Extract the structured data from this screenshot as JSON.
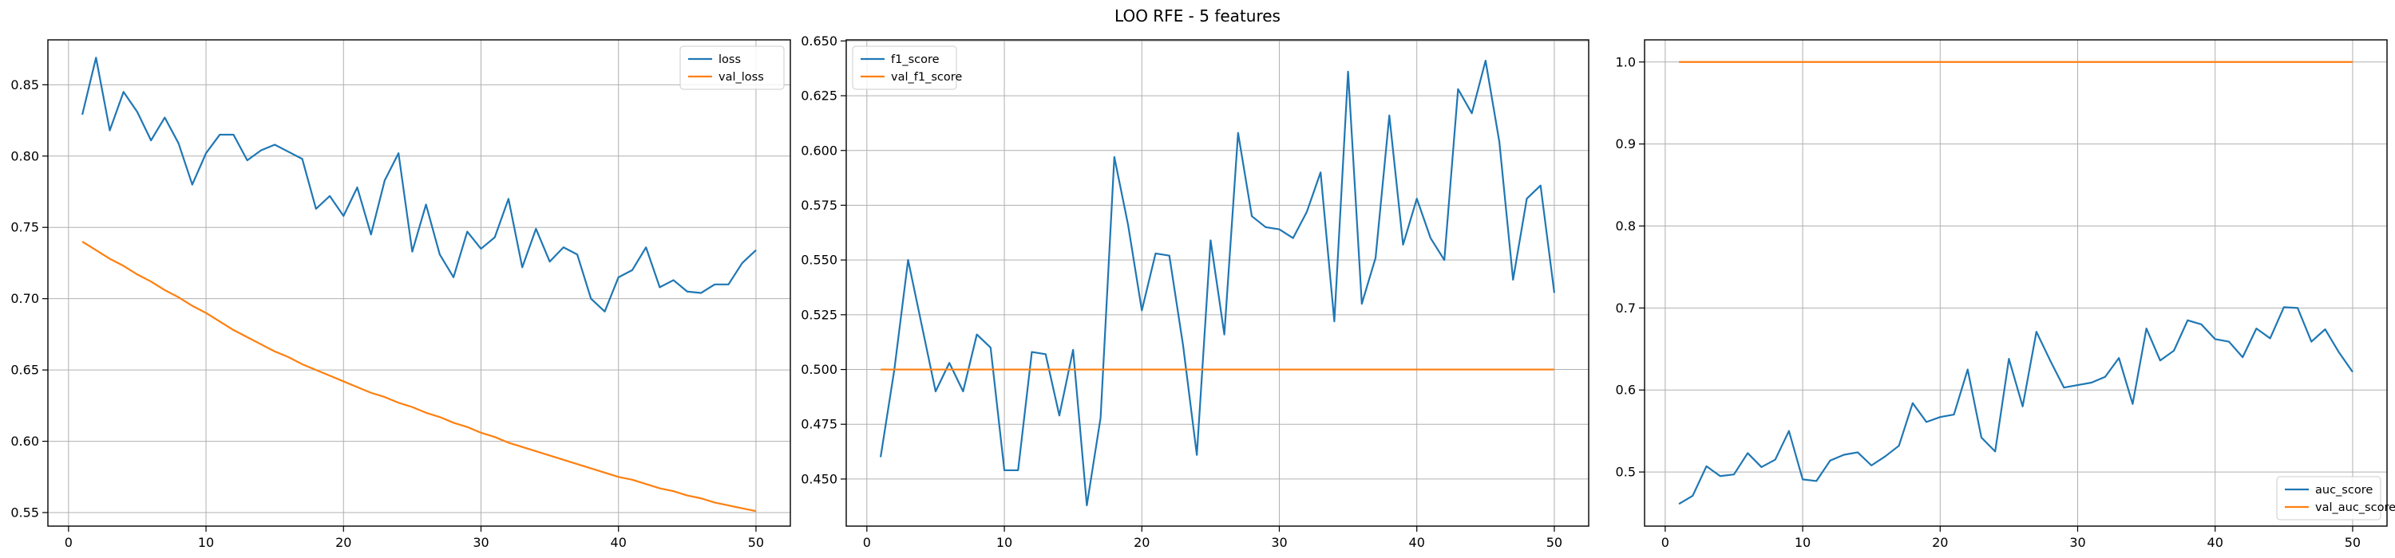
{
  "figure": {
    "title": "LOO RFE - 5 features"
  },
  "chart_data": [
    {
      "type": "line",
      "xlim": [
        -1.5,
        52.5
      ],
      "ylim": [
        0.5405,
        0.8815
      ],
      "xticks": [
        0,
        10,
        20,
        30,
        40,
        50
      ],
      "xtick_labels": [
        "0",
        "10",
        "20",
        "30",
        "40",
        "50"
      ],
      "yticks": [
        0.55,
        0.6,
        0.65,
        0.7,
        0.75,
        0.8,
        0.85
      ],
      "ytick_labels": [
        "0.55",
        "0.60",
        "0.65",
        "0.70",
        "0.75",
        "0.80",
        "0.85"
      ],
      "grid": true,
      "legend_position": "upper right",
      "x": [
        1,
        2,
        3,
        4,
        5,
        6,
        7,
        8,
        9,
        10,
        11,
        12,
        13,
        14,
        15,
        16,
        17,
        18,
        19,
        20,
        21,
        22,
        23,
        24,
        25,
        26,
        27,
        28,
        29,
        30,
        31,
        32,
        33,
        34,
        35,
        36,
        37,
        38,
        39,
        40,
        41,
        42,
        43,
        44,
        45,
        46,
        47,
        48,
        49,
        50
      ],
      "series": [
        {
          "name": "loss",
          "color": "#1f77b4",
          "values": [
            0.829,
            0.869,
            0.818,
            0.845,
            0.831,
            0.811,
            0.827,
            0.809,
            0.78,
            0.802,
            0.815,
            0.815,
            0.797,
            0.804,
            0.808,
            0.803,
            0.798,
            0.763,
            0.772,
            0.758,
            0.778,
            0.745,
            0.783,
            0.802,
            0.733,
            0.766,
            0.731,
            0.715,
            0.747,
            0.735,
            0.743,
            0.77,
            0.722,
            0.749,
            0.726,
            0.736,
            0.731,
            0.7,
            0.691,
            0.715,
            0.72,
            0.736,
            0.708,
            0.713,
            0.705,
            0.704,
            0.71,
            0.71,
            0.725,
            0.734
          ]
        },
        {
          "name": "val_loss",
          "color": "#ff7f0e",
          "values": [
            0.74,
            0.734,
            0.728,
            0.723,
            0.717,
            0.712,
            0.706,
            0.701,
            0.695,
            0.69,
            0.684,
            0.678,
            0.673,
            0.668,
            0.663,
            0.659,
            0.654,
            0.65,
            0.646,
            0.642,
            0.638,
            0.634,
            0.631,
            0.627,
            0.624,
            0.62,
            0.617,
            0.613,
            0.61,
            0.606,
            0.603,
            0.599,
            0.596,
            0.593,
            0.59,
            0.587,
            0.584,
            0.581,
            0.578,
            0.575,
            0.573,
            0.57,
            0.567,
            0.565,
            0.562,
            0.56,
            0.557,
            0.555,
            0.553,
            0.551
          ]
        }
      ]
    },
    {
      "type": "line",
      "xlim": [
        -1.5,
        52.5
      ],
      "ylim": [
        0.4285,
        0.6505
      ],
      "xticks": [
        0,
        10,
        20,
        30,
        40,
        50
      ],
      "xtick_labels": [
        "0",
        "10",
        "20",
        "30",
        "40",
        "50"
      ],
      "yticks": [
        0.45,
        0.475,
        0.5,
        0.525,
        0.55,
        0.575,
        0.6,
        0.625,
        0.65
      ],
      "ytick_labels": [
        "0.450",
        "0.475",
        "0.500",
        "0.525",
        "0.550",
        "0.575",
        "0.600",
        "0.625",
        "0.650"
      ],
      "grid": true,
      "legend_position": "upper left",
      "x": [
        1,
        2,
        3,
        4,
        5,
        6,
        7,
        8,
        9,
        10,
        11,
        12,
        13,
        14,
        15,
        16,
        17,
        18,
        19,
        20,
        21,
        22,
        23,
        24,
        25,
        26,
        27,
        28,
        29,
        30,
        31,
        32,
        33,
        34,
        35,
        36,
        37,
        38,
        39,
        40,
        41,
        42,
        43,
        44,
        45,
        46,
        47,
        48,
        49,
        50
      ],
      "series": [
        {
          "name": "f1_score",
          "color": "#1f77b4",
          "values": [
            0.46,
            0.5,
            0.55,
            0.52,
            0.49,
            0.503,
            0.49,
            0.516,
            0.51,
            0.454,
            0.454,
            0.508,
            0.507,
            0.479,
            0.509,
            0.438,
            0.478,
            0.597,
            0.566,
            0.527,
            0.553,
            0.552,
            0.511,
            0.461,
            0.559,
            0.516,
            0.608,
            0.57,
            0.565,
            0.564,
            0.56,
            0.572,
            0.59,
            0.522,
            0.636,
            0.53,
            0.551,
            0.616,
            0.557,
            0.578,
            0.56,
            0.55,
            0.628,
            0.617,
            0.641,
            0.604,
            0.541,
            0.578,
            0.584,
            0.535
          ]
        },
        {
          "name": "val_f1_score",
          "color": "#ff7f0e",
          "values": [
            0.5,
            0.5,
            0.5,
            0.5,
            0.5,
            0.5,
            0.5,
            0.5,
            0.5,
            0.5,
            0.5,
            0.5,
            0.5,
            0.5,
            0.5,
            0.5,
            0.5,
            0.5,
            0.5,
            0.5,
            0.5,
            0.5,
            0.5,
            0.5,
            0.5,
            0.5,
            0.5,
            0.5,
            0.5,
            0.5,
            0.5,
            0.5,
            0.5,
            0.5,
            0.5,
            0.5,
            0.5,
            0.5,
            0.5,
            0.5,
            0.5,
            0.5,
            0.5,
            0.5,
            0.5,
            0.5,
            0.5,
            0.5,
            0.5,
            0.5
          ]
        }
      ]
    },
    {
      "type": "line",
      "xlim": [
        -1.5,
        52.5
      ],
      "ylim": [
        0.434,
        1.027
      ],
      "xticks": [
        0,
        10,
        20,
        30,
        40,
        50
      ],
      "xtick_labels": [
        "0",
        "10",
        "20",
        "30",
        "40",
        "50"
      ],
      "yticks": [
        0.5,
        0.6,
        0.7,
        0.8,
        0.9,
        1.0
      ],
      "ytick_labels": [
        "0.5",
        "0.6",
        "0.7",
        "0.8",
        "0.9",
        "1.0"
      ],
      "grid": true,
      "legend_position": "lower right",
      "x": [
        1,
        2,
        3,
        4,
        5,
        6,
        7,
        8,
        9,
        10,
        11,
        12,
        13,
        14,
        15,
        16,
        17,
        18,
        19,
        20,
        21,
        22,
        23,
        24,
        25,
        26,
        27,
        28,
        29,
        30,
        31,
        32,
        33,
        34,
        35,
        36,
        37,
        38,
        39,
        40,
        41,
        42,
        43,
        44,
        45,
        46,
        47,
        48,
        49,
        50
      ],
      "series": [
        {
          "name": "auc_score",
          "color": "#1f77b4",
          "values": [
            0.461,
            0.471,
            0.507,
            0.495,
            0.497,
            0.523,
            0.506,
            0.515,
            0.55,
            0.491,
            0.489,
            0.514,
            0.521,
            0.524,
            0.508,
            0.519,
            0.532,
            0.584,
            0.561,
            0.567,
            0.57,
            0.625,
            0.542,
            0.525,
            0.638,
            0.58,
            0.671,
            0.636,
            0.603,
            0.606,
            0.609,
            0.616,
            0.639,
            0.583,
            0.675,
            0.636,
            0.648,
            0.685,
            0.68,
            0.662,
            0.659,
            0.64,
            0.675,
            0.663,
            0.701,
            0.7,
            0.659,
            0.674,
            0.646,
            0.622
          ]
        },
        {
          "name": "val_auc_score",
          "color": "#ff7f0e",
          "values": [
            1.0,
            1.0,
            1.0,
            1.0,
            1.0,
            1.0,
            1.0,
            1.0,
            1.0,
            1.0,
            1.0,
            1.0,
            1.0,
            1.0,
            1.0,
            1.0,
            1.0,
            1.0,
            1.0,
            1.0,
            1.0,
            1.0,
            1.0,
            1.0,
            1.0,
            1.0,
            1.0,
            1.0,
            1.0,
            1.0,
            1.0,
            1.0,
            1.0,
            1.0,
            1.0,
            1.0,
            1.0,
            1.0,
            1.0,
            1.0,
            1.0,
            1.0,
            1.0,
            1.0,
            1.0,
            1.0,
            1.0,
            1.0,
            1.0,
            1.0
          ]
        }
      ]
    }
  ]
}
